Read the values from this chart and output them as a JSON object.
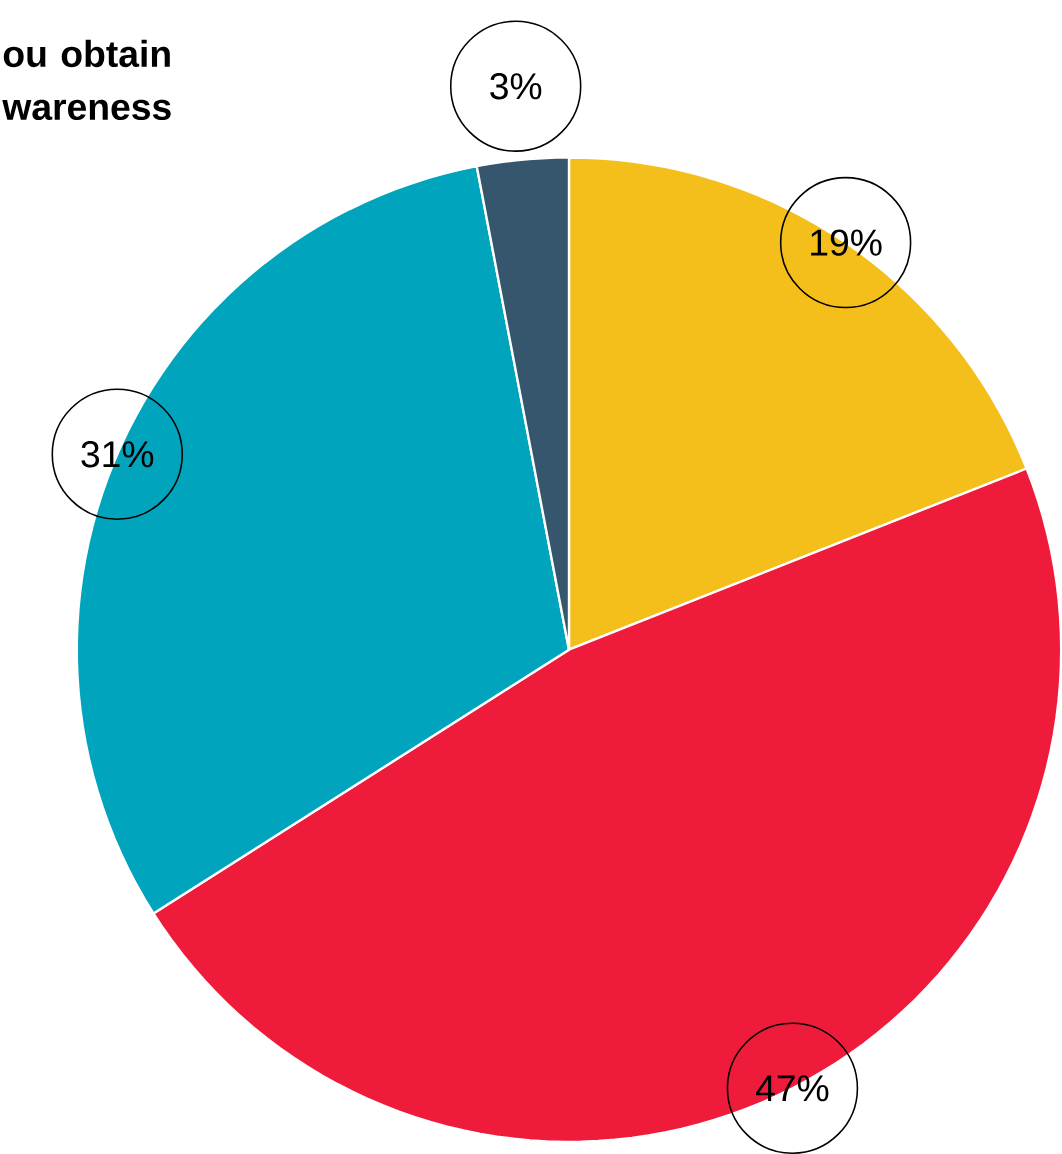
{
  "chart_data": {
    "type": "pie",
    "title": "ou obtain wareness",
    "categories": [
      null,
      null,
      null,
      null
    ],
    "values": [
      19,
      47,
      31,
      3
    ],
    "colors": [
      "#f4bf1a",
      "#ee1c3a",
      "#00a5bd",
      "#36566e"
    ],
    "value_labels": [
      "19%",
      "47%",
      "31%",
      "3%"
    ]
  }
}
